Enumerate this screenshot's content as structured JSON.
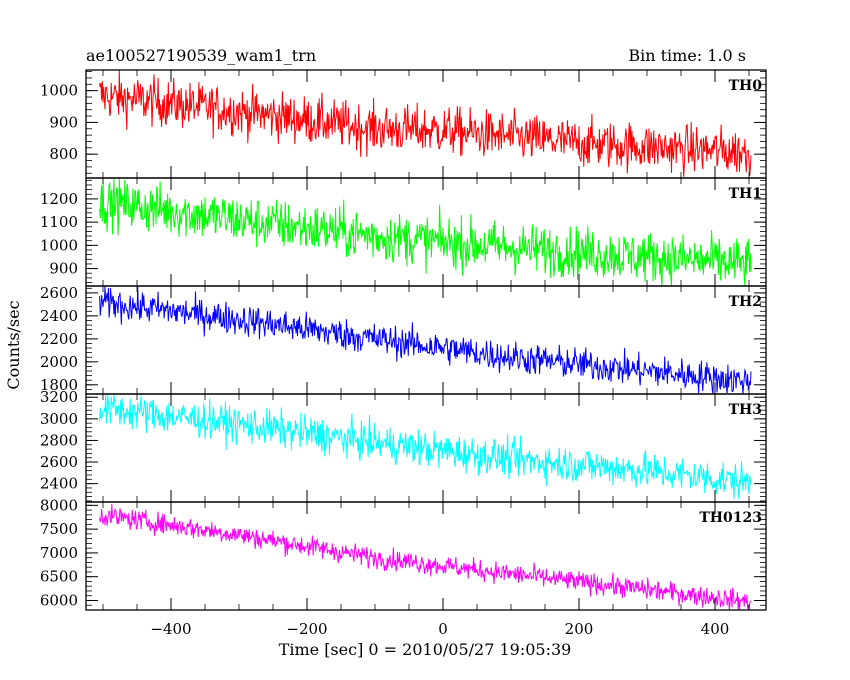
{
  "chart_data": {
    "type": "line",
    "title_left": "ae100527190539_wam1_trn",
    "title_right": "Bin time: 1.0 s",
    "xlabel": "Time [sec] 0 = 2010/05/27 19:05:39",
    "ylabel": "Counts/sec",
    "xlim": [
      -525,
      475
    ],
    "x_ticks": [
      -400,
      -200,
      0,
      200,
      400
    ],
    "x_range_data": [
      -505,
      453
    ],
    "grid": false,
    "panels": [
      {
        "name": "TH0",
        "color": "#ff0000",
        "ylim": [
          725,
          1065
        ],
        "y_ticks": [
          800,
          900,
          1000
        ],
        "trend": [
          [
            -505,
            985
          ],
          [
            -300,
            935
          ],
          [
            -100,
            880
          ],
          [
            0,
            875
          ],
          [
            200,
            835
          ],
          [
            453,
            805
          ]
        ],
        "noise": 38
      },
      {
        "name": "TH1",
        "color": "#00ff00",
        "ylim": [
          825,
          1290
        ],
        "y_ticks": [
          900,
          1000,
          1100,
          1200
        ],
        "trend": [
          [
            -505,
            1190
          ],
          [
            -300,
            1110
          ],
          [
            -100,
            1040
          ],
          [
            100,
            990
          ],
          [
            300,
            950
          ],
          [
            453,
            920
          ]
        ],
        "noise": 55
      },
      {
        "name": "TH2",
        "color": "#0000ff",
        "ylim": [
          1720,
          2660
        ],
        "y_ticks": [
          1800,
          2000,
          2200,
          2400,
          2600
        ],
        "trend": [
          [
            -505,
            2520
          ],
          [
            -300,
            2370
          ],
          [
            -100,
            2200
          ],
          [
            100,
            2040
          ],
          [
            300,
            1920
          ],
          [
            453,
            1830
          ]
        ],
        "noise": 70
      },
      {
        "name": "TH3",
        "color": "#00ffff",
        "ylim": [
          2230,
          3230
        ],
        "y_ticks": [
          2400,
          2600,
          2800,
          3000,
          3200
        ],
        "trend": [
          [
            -505,
            3100
          ],
          [
            -300,
            2950
          ],
          [
            -100,
            2780
          ],
          [
            100,
            2630
          ],
          [
            300,
            2520
          ],
          [
            453,
            2410
          ]
        ],
        "noise": 85
      },
      {
        "name": "TH0123",
        "color": "#ff00ff",
        "ylim": [
          5800,
          8070
        ],
        "y_ticks": [
          6000,
          6500,
          7000,
          7500,
          8000
        ],
        "trend": [
          [
            -505,
            7800
          ],
          [
            -300,
            7380
          ],
          [
            -100,
            6900
          ],
          [
            100,
            6560
          ],
          [
            300,
            6230
          ],
          [
            453,
            5970
          ]
        ],
        "noise": 110
      }
    ]
  }
}
